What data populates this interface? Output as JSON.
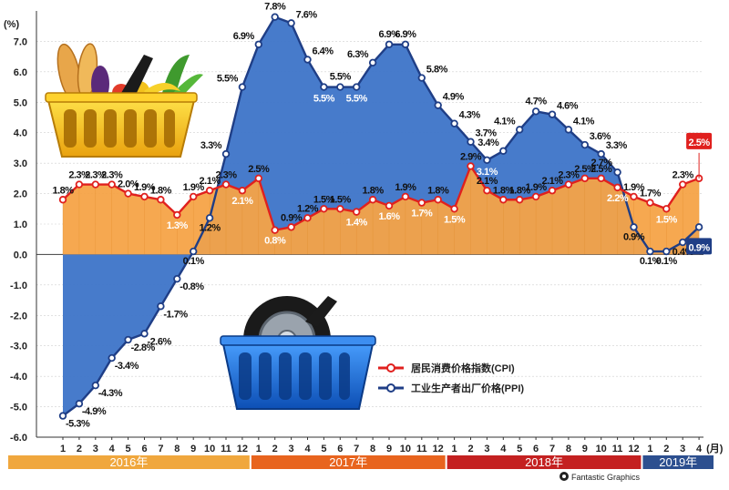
{
  "chart_data": {
    "type": "area",
    "ylabel": "(%)",
    "ylim": [
      -6,
      8
    ],
    "yticks": [
      "-6.0",
      "-5.0",
      "-4.0",
      "-3.0",
      "-2.0",
      "-1.0",
      "0.0",
      "1.0",
      "2.0",
      "3.0",
      "4.0",
      "5.0",
      "6.0",
      "7.0"
    ],
    "x_month_labels": [
      "1",
      "2",
      "3",
      "4",
      "5",
      "6",
      "7",
      "8",
      "9",
      "10",
      "11",
      "12",
      "1",
      "2",
      "3",
      "4",
      "5",
      "6",
      "7",
      "8",
      "9",
      "10",
      "11",
      "12",
      "1",
      "2",
      "3",
      "4",
      "5",
      "6",
      "7",
      "8",
      "9",
      "10",
      "11",
      "12",
      "1",
      "2",
      "3",
      "4"
    ],
    "x_unit": "(月)",
    "years": [
      {
        "label": "2016年",
        "color": "#f0a73d",
        "start": 0,
        "end": 11
      },
      {
        "label": "2017年",
        "color": "#e8641e",
        "start": 12,
        "end": 23
      },
      {
        "label": "2018年",
        "color": "#c42121",
        "start": 24,
        "end": 35
      },
      {
        "label": "2019年",
        "color": "#2c4f8f",
        "start": 36,
        "end": 39
      }
    ],
    "series": [
      {
        "name": "居民消费价格指数(CPI)",
        "color": "#e0201e",
        "fill": "#f5a347",
        "values": [
          1.8,
          2.3,
          2.3,
          2.3,
          2.0,
          1.9,
          1.8,
          1.3,
          1.9,
          2.1,
          2.3,
          2.1,
          2.5,
          0.8,
          0.9,
          1.2,
          1.5,
          1.5,
          1.4,
          1.8,
          1.6,
          1.9,
          1.7,
          1.8,
          1.5,
          2.9,
          2.1,
          1.8,
          1.8,
          1.9,
          2.1,
          2.3,
          2.5,
          2.5,
          2.2,
          1.9,
          1.7,
          1.5,
          2.3,
          2.5
        ],
        "labels": [
          "1.8%",
          "2.3%",
          "2.3%",
          "2.3%",
          "2.0%",
          "1.9%",
          "1.8%",
          "1.3%",
          "1.9%",
          "2.1%",
          "2.3%",
          "2.1%",
          "2.5%",
          "0.8%",
          "0.9%",
          "1.2%",
          "1.5%",
          "1.5%",
          "1.4%",
          "1.8%",
          "1.6%",
          "1.9%",
          "1.7%",
          "1.8%",
          "1.5%",
          "2.9%",
          "2.1%",
          "1.8%",
          "1.8%",
          "1.9%",
          "2.1%",
          "2.3%",
          "2.5%",
          "2.5%",
          "2.2%",
          "1.9%",
          "1.7%",
          "1.5%",
          "2.3%",
          "2.5%"
        ]
      },
      {
        "name": "工业生产者出厂价格(PPI)",
        "color": "#1f3e86",
        "fill": "#3d74c8",
        "values": [
          -5.3,
          -4.9,
          -4.3,
          -3.4,
          -2.8,
          -2.6,
          -1.7,
          -0.8,
          0.1,
          1.2,
          3.3,
          5.5,
          6.9,
          7.8,
          7.6,
          6.4,
          5.5,
          5.5,
          5.5,
          6.3,
          6.9,
          6.9,
          5.8,
          4.9,
          4.3,
          3.7,
          3.1,
          3.4,
          4.1,
          4.7,
          4.6,
          4.1,
          3.6,
          3.3,
          2.7,
          0.9,
          0.1,
          0.1,
          0.4,
          0.9
        ],
        "labels": [
          "-5.3%",
          "-4.9%",
          "-4.3%",
          "-3.4%",
          "-2.8%",
          "-2.6%",
          "-1.7%",
          "-0.8%",
          "0.1%",
          "1.2%",
          "3.3%",
          "5.5%",
          "6.9%",
          "7.8%",
          "7.6%",
          "6.4%",
          "5.5%",
          "5.5%",
          "5.5%",
          "6.3%",
          "6.9%",
          "6.9%",
          "5.8%",
          "4.9%",
          "4.3%",
          "3.7%",
          "3.1%",
          "3.4%",
          "4.1%",
          "4.7%",
          "4.6%",
          "4.1%",
          "3.6%",
          "3.3%",
          "2.7%",
          "0.9%",
          "0.1%",
          "0.1%",
          "0.4%",
          "0.9%"
        ]
      }
    ],
    "legend_placement": "bottom-center",
    "last_value_callouts": {
      "cpi": "2.5%",
      "ppi": "0.9%"
    }
  },
  "credit": "Fantastic Graphics",
  "icons": [
    "shopping-basket-food-icon",
    "shopping-basket-tire-icon",
    "credit-logo-icon"
  ]
}
